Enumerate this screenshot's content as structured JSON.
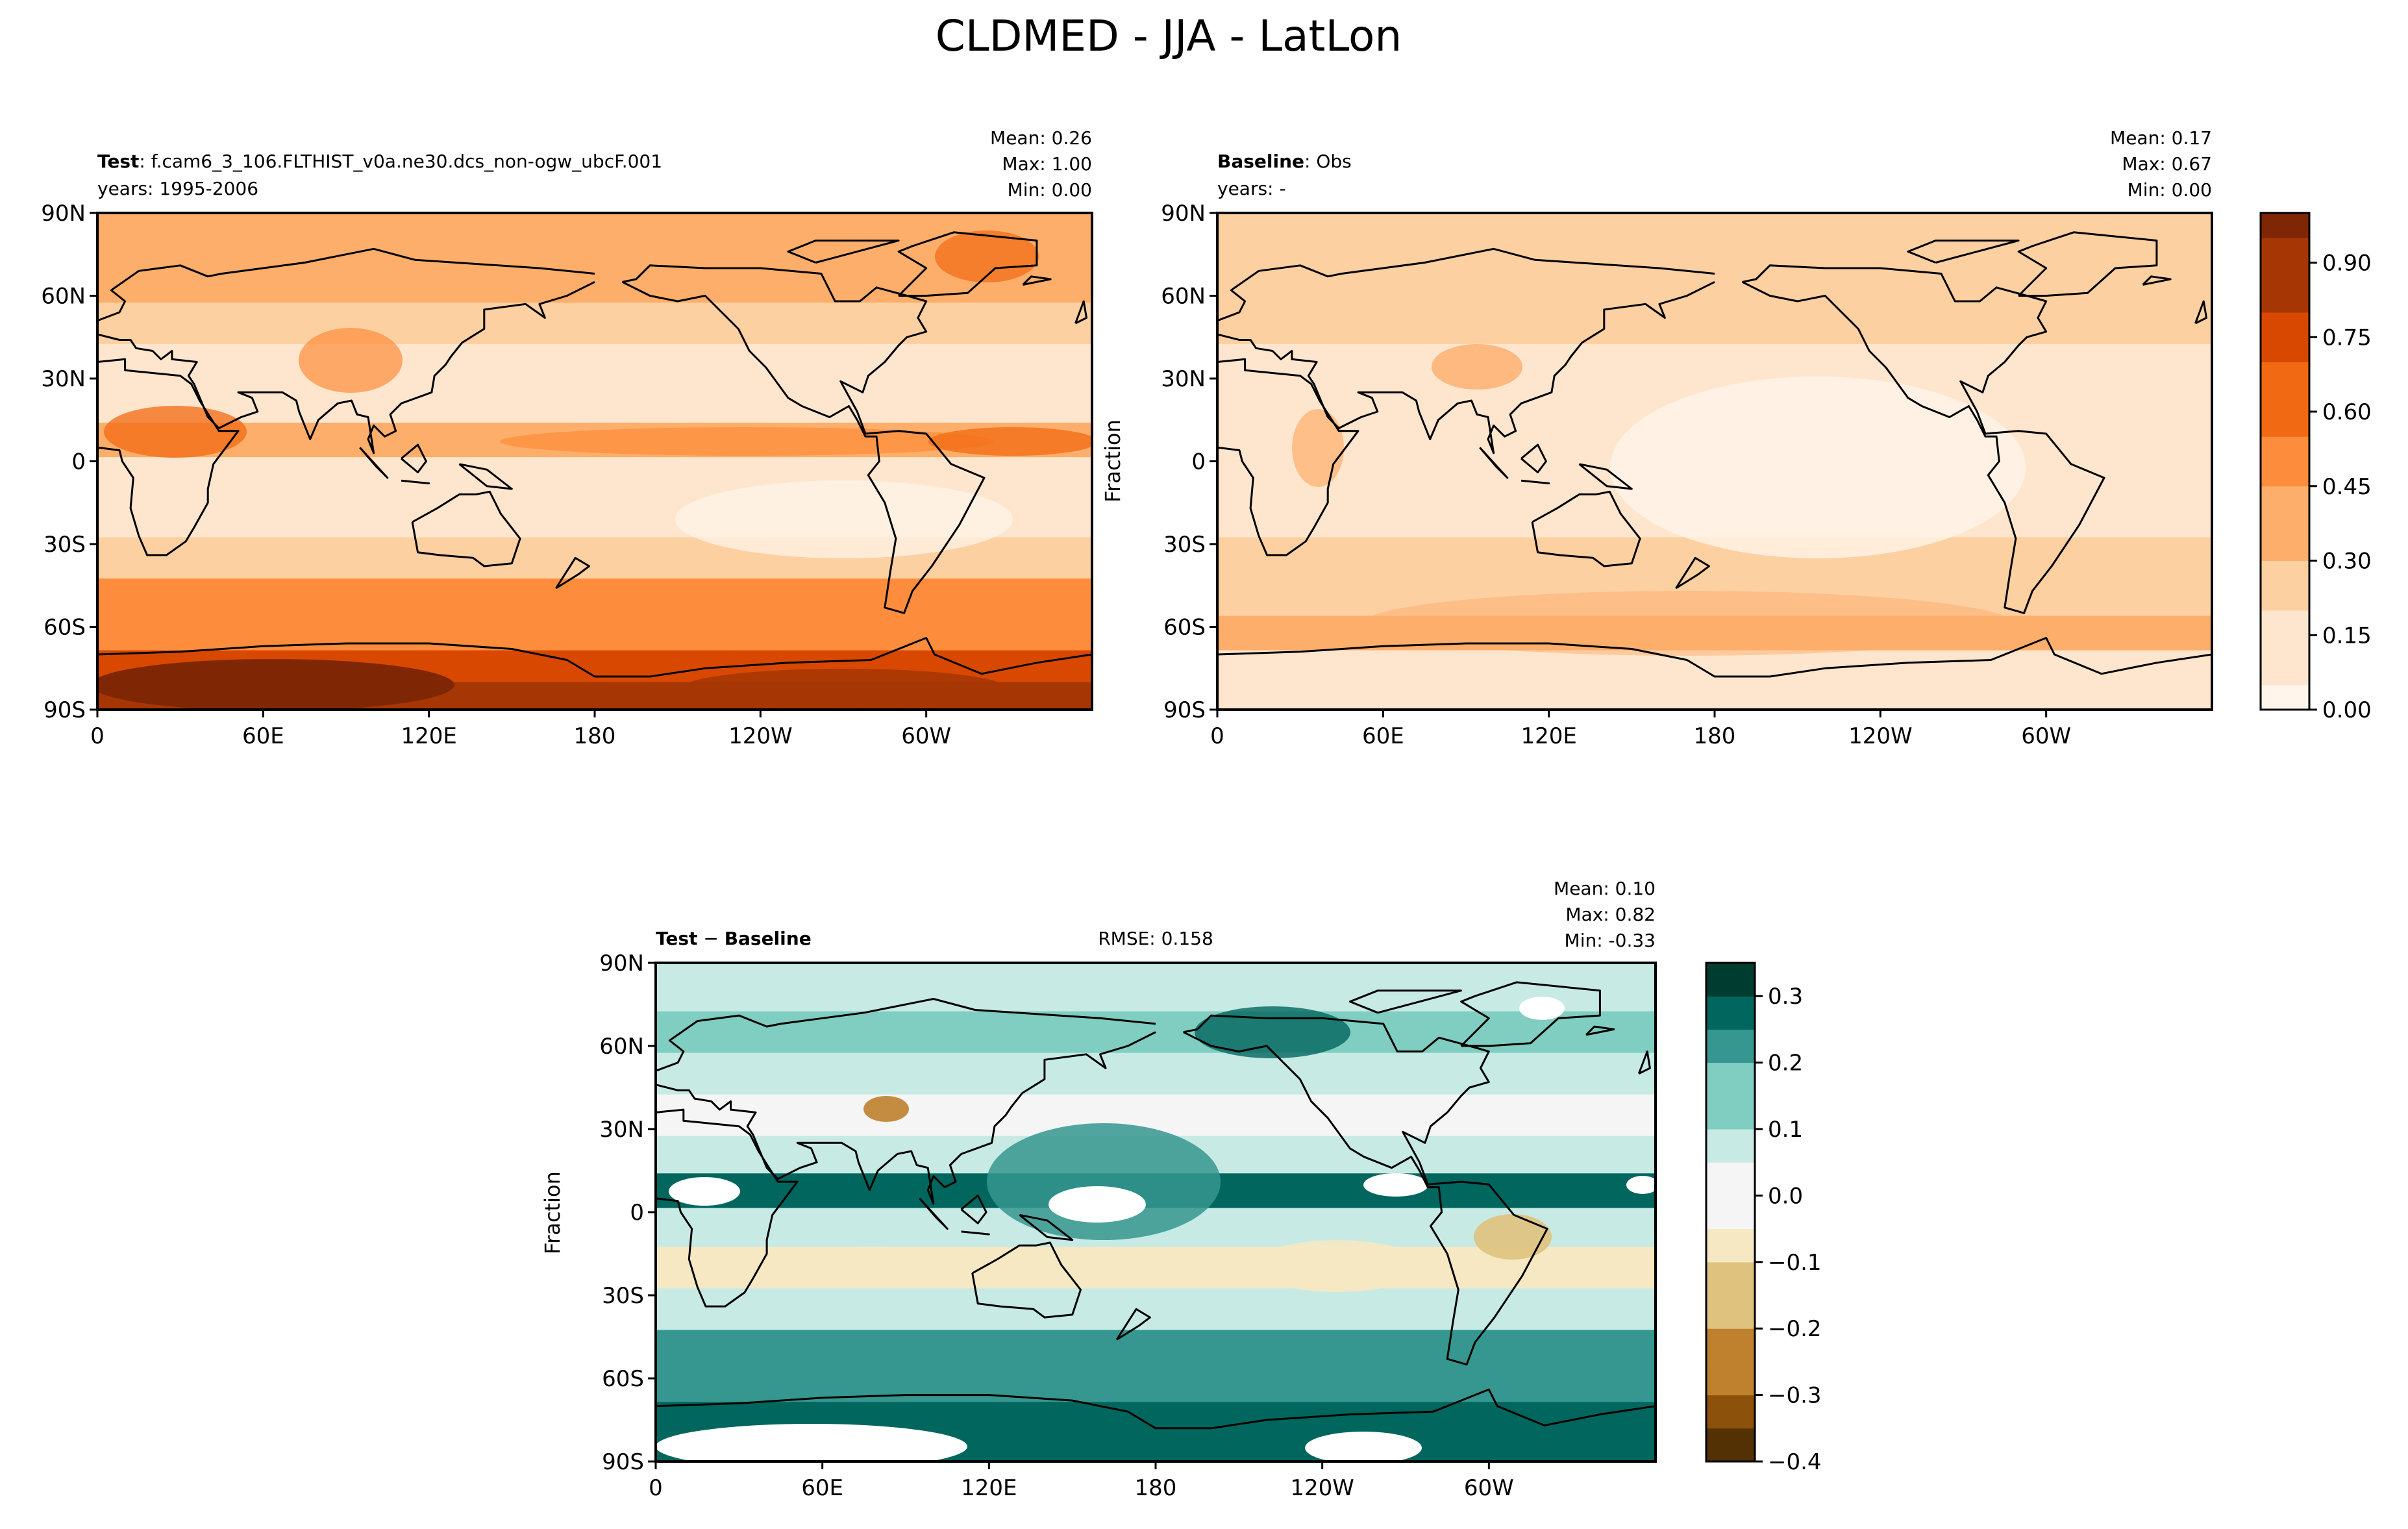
{
  "figure": {
    "title": "CLDMED - JJA - LatLon"
  },
  "colors": {
    "seq_colormap": [
      "#fff5eb",
      "#fee6ce",
      "#fdd0a2",
      "#fdae6b",
      "#fd8d3c",
      "#f16913",
      "#d94801",
      "#a63603",
      "#7f2704"
    ],
    "div_colormap_neg": [
      "#543005",
      "#8c510a",
      "#bf812d",
      "#dfc27d",
      "#f6e8c3",
      "#f5f5f5"
    ],
    "div_colormap_pos": [
      "#f5f5f5",
      "#c7eae5",
      "#80cdc1",
      "#35978f",
      "#01665e",
      "#003c30"
    ],
    "land_outline": "#000000",
    "missing": "#ffffff"
  },
  "icons": {
    "coastline": "coastline-outline"
  },
  "panels": {
    "test": {
      "label_bold": "Test",
      "label_rest": ": f.cam6_3_106.FLTHIST_v0a.ne30.dcs_non-ogw_ubcF.001",
      "years": "years: 1995-2006",
      "stats": [
        "Mean:  0.26",
        "Max:  1.00",
        "Min:  0.00"
      ],
      "ylabel": ""
    },
    "baseline": {
      "label_bold": "Baseline",
      "label_rest": ": Obs",
      "years": "years: -",
      "stats": [
        "Mean:  0.17",
        "Max:  0.67",
        "Min:  0.00"
      ],
      "ylabel": "Fraction"
    },
    "diff": {
      "label_bold": "Test",
      "label_mid": " − ",
      "label_bold2": "Baseline",
      "rmse": "RMSE: 0.158",
      "stats": [
        "Mean:  0.10",
        "Max:  0.82",
        "Min: -0.33"
      ],
      "ylabel": "Fraction"
    }
  },
  "chart_data": [
    {
      "type": "heatmap",
      "panel": "Test",
      "title": "Test: f.cam6_3_106.FLTHIST_v0a.ne30.dcs_non-ogw_ubcF.001",
      "subtitle": "years: 1995-2006",
      "x_tick_labels": [
        "0",
        "60E",
        "120E",
        "180",
        "120W",
        "60W"
      ],
      "y_tick_labels": [
        "90N",
        "60N",
        "30N",
        "0",
        "30S",
        "60S",
        "90S"
      ],
      "xlim": [
        0,
        360
      ],
      "ylim": [
        -90,
        90
      ],
      "stats": {
        "mean": 0.26,
        "max": 1.0,
        "min": 0.0
      },
      "lat_bands": [
        {
          "lat": 80,
          "value": 0.38
        },
        {
          "lat": 65,
          "value": 0.35
        },
        {
          "lat": 50,
          "value": 0.3
        },
        {
          "lat": 35,
          "value": 0.12
        },
        {
          "lat": 20,
          "value": 0.12
        },
        {
          "lat": 8,
          "value": 0.4
        },
        {
          "lat": -5,
          "value": 0.18
        },
        {
          "lat": -20,
          "value": 0.12
        },
        {
          "lat": -35,
          "value": 0.3
        },
        {
          "lat": -50,
          "value": 0.5
        },
        {
          "lat": -62,
          "value": 0.5
        },
        {
          "lat": -75,
          "value": 0.75
        },
        {
          "lat": -85,
          "value": 0.9
        }
      ]
    },
    {
      "type": "heatmap",
      "panel": "Baseline",
      "title": "Baseline: Obs",
      "subtitle": "years: -",
      "ylabel": "Fraction",
      "x_tick_labels": [
        "0",
        "60E",
        "120E",
        "180",
        "120W",
        "60W"
      ],
      "y_tick_labels": [
        "90N",
        "60N",
        "30N",
        "0",
        "30S",
        "60S",
        "90S"
      ],
      "xlim": [
        0,
        360
      ],
      "ylim": [
        -90,
        90
      ],
      "stats": {
        "mean": 0.17,
        "max": 0.67,
        "min": 0.0
      },
      "lat_bands": [
        {
          "lat": 80,
          "value": 0.3
        },
        {
          "lat": 65,
          "value": 0.25
        },
        {
          "lat": 50,
          "value": 0.22
        },
        {
          "lat": 35,
          "value": 0.12
        },
        {
          "lat": 20,
          "value": 0.08
        },
        {
          "lat": 8,
          "value": 0.15
        },
        {
          "lat": -5,
          "value": 0.1
        },
        {
          "lat": -20,
          "value": 0.1
        },
        {
          "lat": -35,
          "value": 0.2
        },
        {
          "lat": -50,
          "value": 0.3
        },
        {
          "lat": -62,
          "value": 0.32
        },
        {
          "lat": -75,
          "value": 0.18
        },
        {
          "lat": -85,
          "value": 0.1
        }
      ],
      "colorbar": {
        "ticks": [
          0.0,
          0.15,
          0.3,
          0.45,
          0.6,
          0.75,
          0.9
        ],
        "tick_labels": [
          "0.00",
          "0.15",
          "0.30",
          "0.45",
          "0.60",
          "0.75",
          "0.90"
        ],
        "range": [
          0.0,
          1.0
        ]
      }
    },
    {
      "type": "heatmap",
      "panel": "Test - Baseline",
      "title": "Test − Baseline",
      "annotation": "RMSE: 0.158",
      "ylabel": "Fraction",
      "x_tick_labels": [
        "0",
        "60E",
        "120E",
        "180",
        "120W",
        "60W"
      ],
      "y_tick_labels": [
        "90N",
        "60N",
        "30N",
        "0",
        "30S",
        "60S",
        "90S"
      ],
      "xlim": [
        0,
        360
      ],
      "ylim": [
        -90,
        90
      ],
      "stats": {
        "mean": 0.1,
        "max": 0.82,
        "min": -0.33
      },
      "lat_bands": [
        {
          "lat": 80,
          "value": 0.1
        },
        {
          "lat": 65,
          "value": 0.15
        },
        {
          "lat": 50,
          "value": 0.08
        },
        {
          "lat": 35,
          "value": 0.02
        },
        {
          "lat": 20,
          "value": 0.05
        },
        {
          "lat": 8,
          "value": 0.25
        },
        {
          "lat": -5,
          "value": 0.05
        },
        {
          "lat": -20,
          "value": -0.05
        },
        {
          "lat": -35,
          "value": 0.08
        },
        {
          "lat": -50,
          "value": 0.18
        },
        {
          "lat": -62,
          "value": 0.2
        },
        {
          "lat": -75,
          "value": 0.25
        },
        {
          "lat": -85,
          "value": 0.3
        }
      ],
      "colorbar": {
        "ticks": [
          -0.4,
          -0.3,
          -0.2,
          -0.1,
          0.0,
          0.1,
          0.2,
          0.3
        ],
        "tick_labels": [
          "−0.4",
          "−0.3",
          "−0.2",
          "−0.1",
          "0.0",
          "0.1",
          "0.2",
          "0.3"
        ],
        "range": [
          -0.4,
          0.35
        ]
      }
    }
  ]
}
